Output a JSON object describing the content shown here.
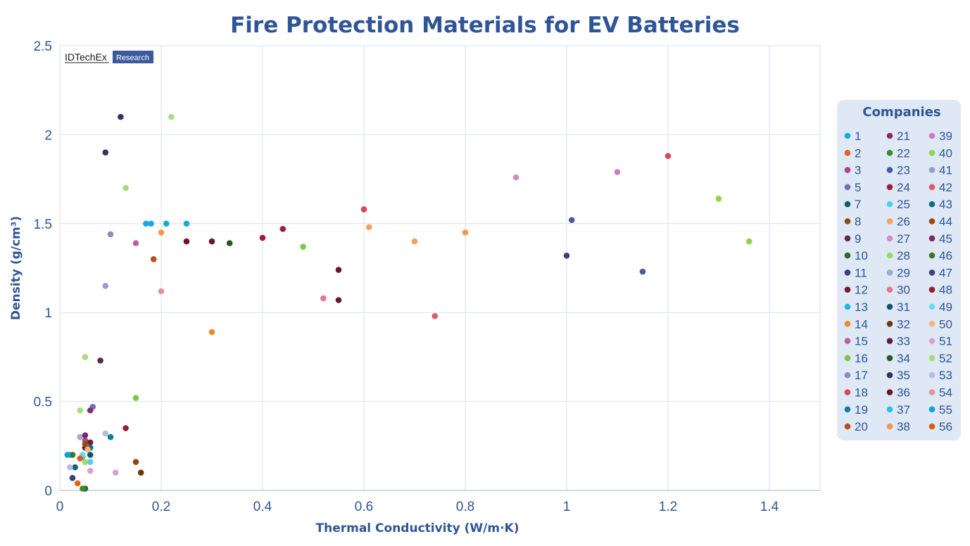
{
  "chart_data": {
    "type": "scatter",
    "title": "Fire Protection Materials for EV Batteries",
    "xlabel": "Thermal Conductivity (W/m·K)",
    "ylabel": "Density (g/cm³)",
    "xlim": [
      0,
      1.5
    ],
    "ylim": [
      0,
      2.5
    ],
    "x_ticks": [
      0,
      0.2,
      0.4,
      0.6,
      0.8,
      1,
      1.2,
      1.4
    ],
    "x_tick_labels": [
      "0",
      "0.2",
      "0.4",
      "0.6",
      "0.8",
      "1",
      "1.2",
      "1.4"
    ],
    "y_ticks": [
      0,
      0.5,
      1,
      1.5,
      2,
      2.5
    ],
    "y_tick_labels": [
      "0",
      "0.5",
      "1",
      "1.5",
      "2",
      "2.5"
    ],
    "grid": true,
    "legend_title": "Companies",
    "legend_position": "right",
    "series": [
      {
        "name": "1",
        "color": "#16a9e0",
        "points": [
          [
            0.17,
            1.5
          ],
          [
            0.18,
            1.5
          ],
          [
            0.21,
            1.5
          ],
          [
            0.25,
            1.5
          ]
        ]
      },
      {
        "name": "2",
        "color": "#e3631b",
        "points": [
          [
            0.035,
            0.04
          ]
        ]
      },
      {
        "name": "3",
        "color": "#b0418f",
        "points": [
          [
            0.05,
            0.28
          ]
        ]
      },
      {
        "name": "5",
        "color": "#6f6fb8",
        "points": [
          [
            0.065,
            0.47
          ]
        ]
      },
      {
        "name": "7",
        "color": "#0f5f6f",
        "points": [
          [
            0.03,
            0.13
          ]
        ]
      },
      {
        "name": "8",
        "color": "#8a4a14",
        "points": [
          [
            0.15,
            0.16
          ]
        ]
      },
      {
        "name": "9",
        "color": "#5c2a4a",
        "points": [
          [
            0.08,
            0.73
          ]
        ]
      },
      {
        "name": "10",
        "color": "#2d6b2d",
        "points": [
          [
            0.05,
            0.01
          ]
        ]
      },
      {
        "name": "11",
        "color": "#3a3f7a",
        "points": [
          [
            0.025,
            0.07
          ]
        ]
      },
      {
        "name": "12",
        "color": "#7a1a2e",
        "points": [
          [
            0.06,
            0.27
          ]
        ]
      },
      {
        "name": "13",
        "color": "#19b5e5",
        "points": [
          [
            0.02,
            0.2
          ]
        ]
      },
      {
        "name": "14",
        "color": "#f08a2e",
        "points": [
          [
            0.3,
            0.89
          ]
        ]
      },
      {
        "name": "15",
        "color": "#c05ca0",
        "points": [
          [
            0.15,
            1.39
          ]
        ]
      },
      {
        "name": "16",
        "color": "#7ac943",
        "points": [
          [
            0.15,
            0.52
          ],
          [
            0.48,
            1.37
          ]
        ]
      },
      {
        "name": "17",
        "color": "#8a8cc2",
        "points": [
          [
            0.1,
            1.44
          ]
        ]
      },
      {
        "name": "18",
        "color": "#e04456",
        "points": [
          [
            0.6,
            1.58
          ],
          [
            1.2,
            1.88
          ]
        ]
      },
      {
        "name": "19",
        "color": "#0f7fa0",
        "points": [
          [
            0.1,
            0.3
          ]
        ]
      },
      {
        "name": "20",
        "color": "#b5501c",
        "points": [
          [
            0.185,
            1.3
          ]
        ]
      },
      {
        "name": "21",
        "color": "#8a2a6a",
        "points": [
          [
            0.06,
            0.45
          ]
        ]
      },
      {
        "name": "22",
        "color": "#3e8a2e",
        "points": [
          [
            0.045,
            0.01
          ]
        ]
      },
      {
        "name": "23",
        "color": "#4a5aa0",
        "points": [
          [
            1.01,
            1.52
          ],
          [
            1.15,
            1.23
          ]
        ]
      },
      {
        "name": "24",
        "color": "#a01e3a",
        "points": [
          [
            0.4,
            1.42
          ],
          [
            0.44,
            1.47
          ]
        ]
      },
      {
        "name": "25",
        "color": "#4fd0f0",
        "points": [
          [
            0.06,
            0.16
          ]
        ]
      },
      {
        "name": "26",
        "color": "#f5a25e",
        "points": [
          [
            0.61,
            1.48
          ],
          [
            0.7,
            1.4
          ]
        ]
      },
      {
        "name": "27",
        "color": "#d48cc4",
        "points": [
          [
            0.9,
            1.76
          ]
        ]
      },
      {
        "name": "28",
        "color": "#9bd86a",
        "points": [
          [
            0.05,
            0.16
          ]
        ]
      },
      {
        "name": "29",
        "color": "#a3a6d6",
        "points": [
          [
            0.04,
            0.3
          ]
        ]
      },
      {
        "name": "30",
        "color": "#e37a88",
        "points": [
          [
            0.52,
            1.08
          ]
        ]
      },
      {
        "name": "31",
        "color": "#0a5a6a",
        "points": [
          [
            0.06,
            0.2
          ]
        ]
      },
      {
        "name": "32",
        "color": "#6b3a0f",
        "points": [
          [
            0.16,
            0.1
          ]
        ]
      },
      {
        "name": "33",
        "color": "#5a1f47",
        "points": [
          [
            0.05,
            0.24
          ]
        ]
      },
      {
        "name": "34",
        "color": "#2a5a1f",
        "points": [
          [
            0.335,
            1.39
          ]
        ]
      },
      {
        "name": "35",
        "color": "#2d3563",
        "points": [
          [
            0.12,
            2.1
          ],
          [
            0.09,
            1.9
          ]
        ]
      },
      {
        "name": "36",
        "color": "#6a1528",
        "points": [
          [
            0.25,
            1.4
          ],
          [
            0.3,
            1.4
          ],
          [
            0.55,
            1.24
          ],
          [
            0.55,
            1.07
          ]
        ]
      },
      {
        "name": "37",
        "color": "#2ac0f0",
        "points": [
          [
            0.045,
            0.19
          ]
        ]
      },
      {
        "name": "38",
        "color": "#f39a4a",
        "points": [
          [
            0.2,
            1.45
          ],
          [
            0.8,
            1.45
          ]
        ]
      },
      {
        "name": "39",
        "color": "#d07ab8",
        "points": [
          [
            1.1,
            1.79
          ]
        ]
      },
      {
        "name": "40",
        "color": "#8fd44a",
        "points": [
          [
            1.3,
            1.64
          ],
          [
            1.36,
            1.4
          ]
        ]
      },
      {
        "name": "41",
        "color": "#9a9cd0",
        "points": [
          [
            0.09,
            1.15
          ]
        ]
      },
      {
        "name": "42",
        "color": "#e2576a",
        "points": [
          [
            0.74,
            0.98
          ]
        ]
      },
      {
        "name": "43",
        "color": "#0e6b85",
        "points": [
          [
            0.06,
            0.24
          ]
        ]
      },
      {
        "name": "44",
        "color": "#9a4a10",
        "points": [
          [
            0.05,
            0.26
          ]
        ]
      },
      {
        "name": "45",
        "color": "#7a2866",
        "points": [
          [
            0.05,
            0.31
          ]
        ]
      },
      {
        "name": "46",
        "color": "#3b7a1e",
        "points": [
          [
            0.025,
            0.2
          ]
        ]
      },
      {
        "name": "47",
        "color": "#38437e",
        "points": [
          [
            1.0,
            1.32
          ]
        ]
      },
      {
        "name": "48",
        "color": "#9a1c30",
        "points": [
          [
            0.13,
            0.35
          ]
        ]
      },
      {
        "name": "49",
        "color": "#6ed6f5",
        "points": [
          [
            0.045,
            0.2
          ]
        ]
      },
      {
        "name": "50",
        "color": "#f7b478",
        "points": [
          [
            0.055,
            0.23
          ]
        ]
      },
      {
        "name": "51",
        "color": "#dba0cf",
        "points": [
          [
            0.11,
            0.1
          ],
          [
            0.06,
            0.11
          ]
        ]
      },
      {
        "name": "52",
        "color": "#a8dc7a",
        "points": [
          [
            0.22,
            2.1
          ],
          [
            0.13,
            1.7
          ],
          [
            0.05,
            0.75
          ],
          [
            0.04,
            0.45
          ]
        ]
      },
      {
        "name": "53",
        "color": "#b8bbe0",
        "points": [
          [
            0.09,
            0.32
          ],
          [
            0.02,
            0.13
          ]
        ]
      },
      {
        "name": "54",
        "color": "#e6909c",
        "points": [
          [
            0.2,
            1.12
          ]
        ]
      },
      {
        "name": "55",
        "color": "#0aa3dc",
        "points": [
          [
            0.015,
            0.2
          ]
        ]
      },
      {
        "name": "56",
        "color": "#e05a14",
        "points": [
          [
            0.04,
            0.18
          ]
        ]
      }
    ]
  },
  "logo": {
    "brand": "IDTechEx",
    "badge": "Research",
    "badge_color": "#3a5a9c"
  },
  "colors": {
    "accent": "#2f5597",
    "grid": "#d9dff0",
    "legend_bg": "#dfe8f5"
  }
}
